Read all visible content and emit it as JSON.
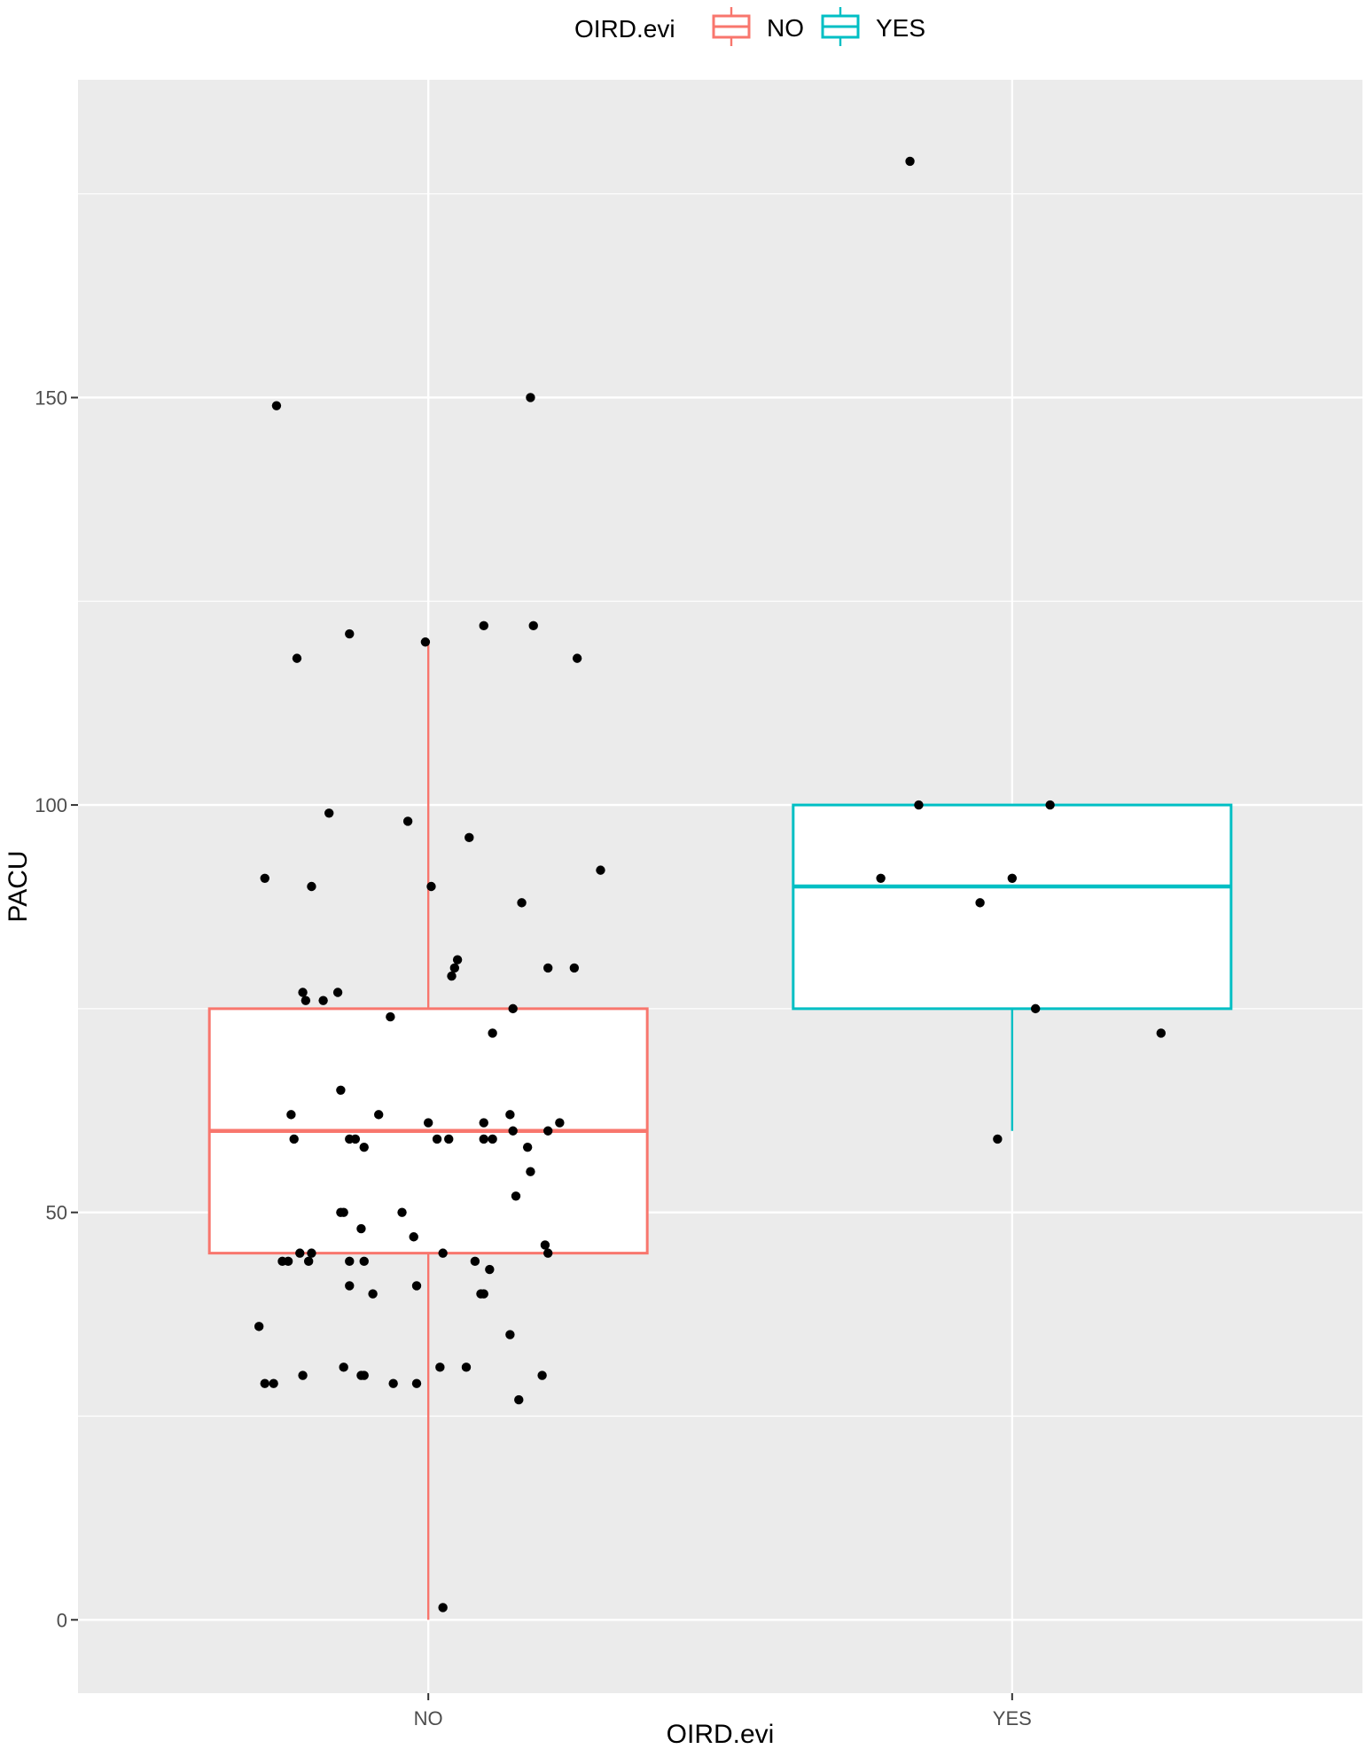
{
  "chart_data": {
    "type": "box",
    "xlabel": "OIRD.evi",
    "ylabel": "PACU",
    "categories": [
      "NO",
      "YES"
    ],
    "yticks": [
      0,
      50,
      100,
      150
    ],
    "ylim": [
      -9,
      189
    ],
    "grid": true,
    "legend": {
      "title": "OIRD.evi",
      "position": "top",
      "entries": [
        "NO",
        "YES"
      ]
    },
    "colors": {
      "NO": "#F8766D",
      "YES": "#00BFC4",
      "points": "#000000",
      "panel": "#EBEBEB",
      "grid": "#FFFFFF"
    },
    "boxes": [
      {
        "category": "NO",
        "whisker_low": 0,
        "q1": 45,
        "median": 60,
        "q3": 75,
        "whisker_high": 120
      },
      {
        "category": "YES",
        "whisker_low": 60,
        "q1": 75,
        "median": 90,
        "q3": 100,
        "whisker_high": 100
      }
    ],
    "points": [
      {
        "category": "NO",
        "jitter": -0.52,
        "y": 149
      },
      {
        "category": "NO",
        "jitter": 0.35,
        "y": 150
      },
      {
        "category": "NO",
        "jitter": -0.45,
        "y": 118
      },
      {
        "category": "NO",
        "jitter": -0.27,
        "y": 121
      },
      {
        "category": "NO",
        "jitter": -0.01,
        "y": 120
      },
      {
        "category": "NO",
        "jitter": 0.19,
        "y": 122
      },
      {
        "category": "NO",
        "jitter": 0.36,
        "y": 122
      },
      {
        "category": "NO",
        "jitter": 0.51,
        "y": 118
      },
      {
        "category": "NO",
        "jitter": -0.34,
        "y": 99
      },
      {
        "category": "NO",
        "jitter": -0.07,
        "y": 98
      },
      {
        "category": "NO",
        "jitter": 0.14,
        "y": 96
      },
      {
        "category": "NO",
        "jitter": -0.56,
        "y": 91
      },
      {
        "category": "NO",
        "jitter": -0.4,
        "y": 90
      },
      {
        "category": "NO",
        "jitter": 0.01,
        "y": 90
      },
      {
        "category": "NO",
        "jitter": 0.32,
        "y": 88
      },
      {
        "category": "NO",
        "jitter": 0.59,
        "y": 92
      },
      {
        "category": "NO",
        "jitter": 0.1,
        "y": 81
      },
      {
        "category": "NO",
        "jitter": 0.09,
        "y": 80
      },
      {
        "category": "NO",
        "jitter": 0.08,
        "y": 79
      },
      {
        "category": "NO",
        "jitter": 0.41,
        "y": 80
      },
      {
        "category": "NO",
        "jitter": 0.5,
        "y": 80
      },
      {
        "category": "NO",
        "jitter": -0.43,
        "y": 77
      },
      {
        "category": "NO",
        "jitter": -0.42,
        "y": 76
      },
      {
        "category": "NO",
        "jitter": -0.36,
        "y": 76
      },
      {
        "category": "NO",
        "jitter": -0.31,
        "y": 77
      },
      {
        "category": "NO",
        "jitter": -0.13,
        "y": 74
      },
      {
        "category": "NO",
        "jitter": 0.29,
        "y": 75
      },
      {
        "category": "NO",
        "jitter": 0.22,
        "y": 72
      },
      {
        "category": "NO",
        "jitter": -0.3,
        "y": 65
      },
      {
        "category": "NO",
        "jitter": -0.47,
        "y": 62
      },
      {
        "category": "NO",
        "jitter": -0.17,
        "y": 62
      },
      {
        "category": "NO",
        "jitter": 0.0,
        "y": 61
      },
      {
        "category": "NO",
        "jitter": 0.19,
        "y": 61
      },
      {
        "category": "NO",
        "jitter": 0.28,
        "y": 62
      },
      {
        "category": "NO",
        "jitter": 0.29,
        "y": 60
      },
      {
        "category": "NO",
        "jitter": 0.45,
        "y": 61
      },
      {
        "category": "NO",
        "jitter": 0.41,
        "y": 60
      },
      {
        "category": "NO",
        "jitter": -0.46,
        "y": 59
      },
      {
        "category": "NO",
        "jitter": -0.27,
        "y": 59
      },
      {
        "category": "NO",
        "jitter": -0.25,
        "y": 59
      },
      {
        "category": "NO",
        "jitter": -0.22,
        "y": 58
      },
      {
        "category": "NO",
        "jitter": 0.03,
        "y": 59
      },
      {
        "category": "NO",
        "jitter": 0.07,
        "y": 59
      },
      {
        "category": "NO",
        "jitter": 0.19,
        "y": 59
      },
      {
        "category": "NO",
        "jitter": 0.22,
        "y": 59
      },
      {
        "category": "NO",
        "jitter": 0.34,
        "y": 58
      },
      {
        "category": "NO",
        "jitter": 0.35,
        "y": 55
      },
      {
        "category": "NO",
        "jitter": 0.3,
        "y": 52
      },
      {
        "category": "NO",
        "jitter": -0.3,
        "y": 50
      },
      {
        "category": "NO",
        "jitter": -0.29,
        "y": 50
      },
      {
        "category": "NO",
        "jitter": -0.09,
        "y": 50
      },
      {
        "category": "NO",
        "jitter": -0.23,
        "y": 48
      },
      {
        "category": "NO",
        "jitter": -0.05,
        "y": 47
      },
      {
        "category": "NO",
        "jitter": 0.4,
        "y": 46
      },
      {
        "category": "NO",
        "jitter": -0.44,
        "y": 45
      },
      {
        "category": "NO",
        "jitter": -0.4,
        "y": 45
      },
      {
        "category": "NO",
        "jitter": 0.05,
        "y": 45
      },
      {
        "category": "NO",
        "jitter": 0.41,
        "y": 45
      },
      {
        "category": "NO",
        "jitter": -0.5,
        "y": 44
      },
      {
        "category": "NO",
        "jitter": -0.48,
        "y": 44
      },
      {
        "category": "NO",
        "jitter": -0.41,
        "y": 44
      },
      {
        "category": "NO",
        "jitter": -0.27,
        "y": 44
      },
      {
        "category": "NO",
        "jitter": -0.22,
        "y": 44
      },
      {
        "category": "NO",
        "jitter": 0.16,
        "y": 44
      },
      {
        "category": "NO",
        "jitter": 0.21,
        "y": 43
      },
      {
        "category": "NO",
        "jitter": -0.27,
        "y": 41
      },
      {
        "category": "NO",
        "jitter": -0.19,
        "y": 40
      },
      {
        "category": "NO",
        "jitter": -0.04,
        "y": 41
      },
      {
        "category": "NO",
        "jitter": 0.18,
        "y": 40
      },
      {
        "category": "NO",
        "jitter": 0.19,
        "y": 40
      },
      {
        "category": "NO",
        "jitter": -0.58,
        "y": 36
      },
      {
        "category": "NO",
        "jitter": 0.28,
        "y": 35
      },
      {
        "category": "NO",
        "jitter": -0.29,
        "y": 31
      },
      {
        "category": "NO",
        "jitter": -0.22,
        "y": 30
      },
      {
        "category": "NO",
        "jitter": -0.43,
        "y": 30
      },
      {
        "category": "NO",
        "jitter": -0.23,
        "y": 30
      },
      {
        "category": "NO",
        "jitter": -0.04,
        "y": 29
      },
      {
        "category": "NO",
        "jitter": 0.04,
        "y": 31
      },
      {
        "category": "NO",
        "jitter": 0.13,
        "y": 31
      },
      {
        "category": "NO",
        "jitter": 0.39,
        "y": 30
      },
      {
        "category": "NO",
        "jitter": -0.56,
        "y": 29
      },
      {
        "category": "NO",
        "jitter": -0.53,
        "y": 29
      },
      {
        "category": "NO",
        "jitter": -0.12,
        "y": 29
      },
      {
        "category": "NO",
        "jitter": 0.31,
        "y": 27
      },
      {
        "category": "NO",
        "jitter": 0.05,
        "y": 1.5
      },
      {
        "category": "YES",
        "jitter": -0.35,
        "y": 179
      },
      {
        "category": "YES",
        "jitter": -0.32,
        "y": 100
      },
      {
        "category": "YES",
        "jitter": 0.13,
        "y": 100
      },
      {
        "category": "YES",
        "jitter": -0.45,
        "y": 91
      },
      {
        "category": "YES",
        "jitter": 0.0,
        "y": 91
      },
      {
        "category": "YES",
        "jitter": -0.11,
        "y": 88
      },
      {
        "category": "YES",
        "jitter": 0.08,
        "y": 75
      },
      {
        "category": "YES",
        "jitter": 0.51,
        "y": 72
      },
      {
        "category": "YES",
        "jitter": -0.05,
        "y": 59
      }
    ]
  }
}
